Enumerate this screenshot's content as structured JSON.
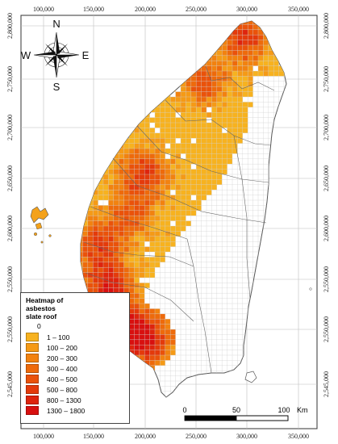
{
  "x_ticks": [
    "100,000",
    "150,000",
    "200,000",
    "250,000",
    "300,000",
    "350,000"
  ],
  "y_ticks": [
    "2,800,000",
    "2,750,000",
    "2,700,000",
    "2,650,000",
    "2,600,000",
    "2,550,000",
    "2,550,000",
    "2,545,000"
  ],
  "compass": {
    "north": "N",
    "south": "S",
    "east": "E",
    "west": "W"
  },
  "legend": {
    "title_lines": [
      "Heatmap of",
      "asbestos",
      "slate roof"
    ],
    "zero_label": "0",
    "classes": [
      {
        "label": "1 – 100",
        "color": "#f7b21f"
      },
      {
        "label": "100 – 200",
        "color": "#f59a16"
      },
      {
        "label": "200 – 300",
        "color": "#f2820f"
      },
      {
        "label": "300 – 400",
        "color": "#ee6a0b"
      },
      {
        "label": "400 – 500",
        "color": "#ea520a"
      },
      {
        "label": "500 – 800",
        "color": "#e43a0b"
      },
      {
        "label": "800 – 1300",
        "color": "#de240d"
      },
      {
        "label": "1300 – 1800",
        "color": "#d8100f"
      }
    ]
  },
  "scale_bar": {
    "labels": [
      "0",
      "50",
      "100"
    ],
    "unit": "Km"
  },
  "colors": {
    "island_fill": "#ffffff",
    "coast": "#555555",
    "grid": "#c8c8c8"
  }
}
